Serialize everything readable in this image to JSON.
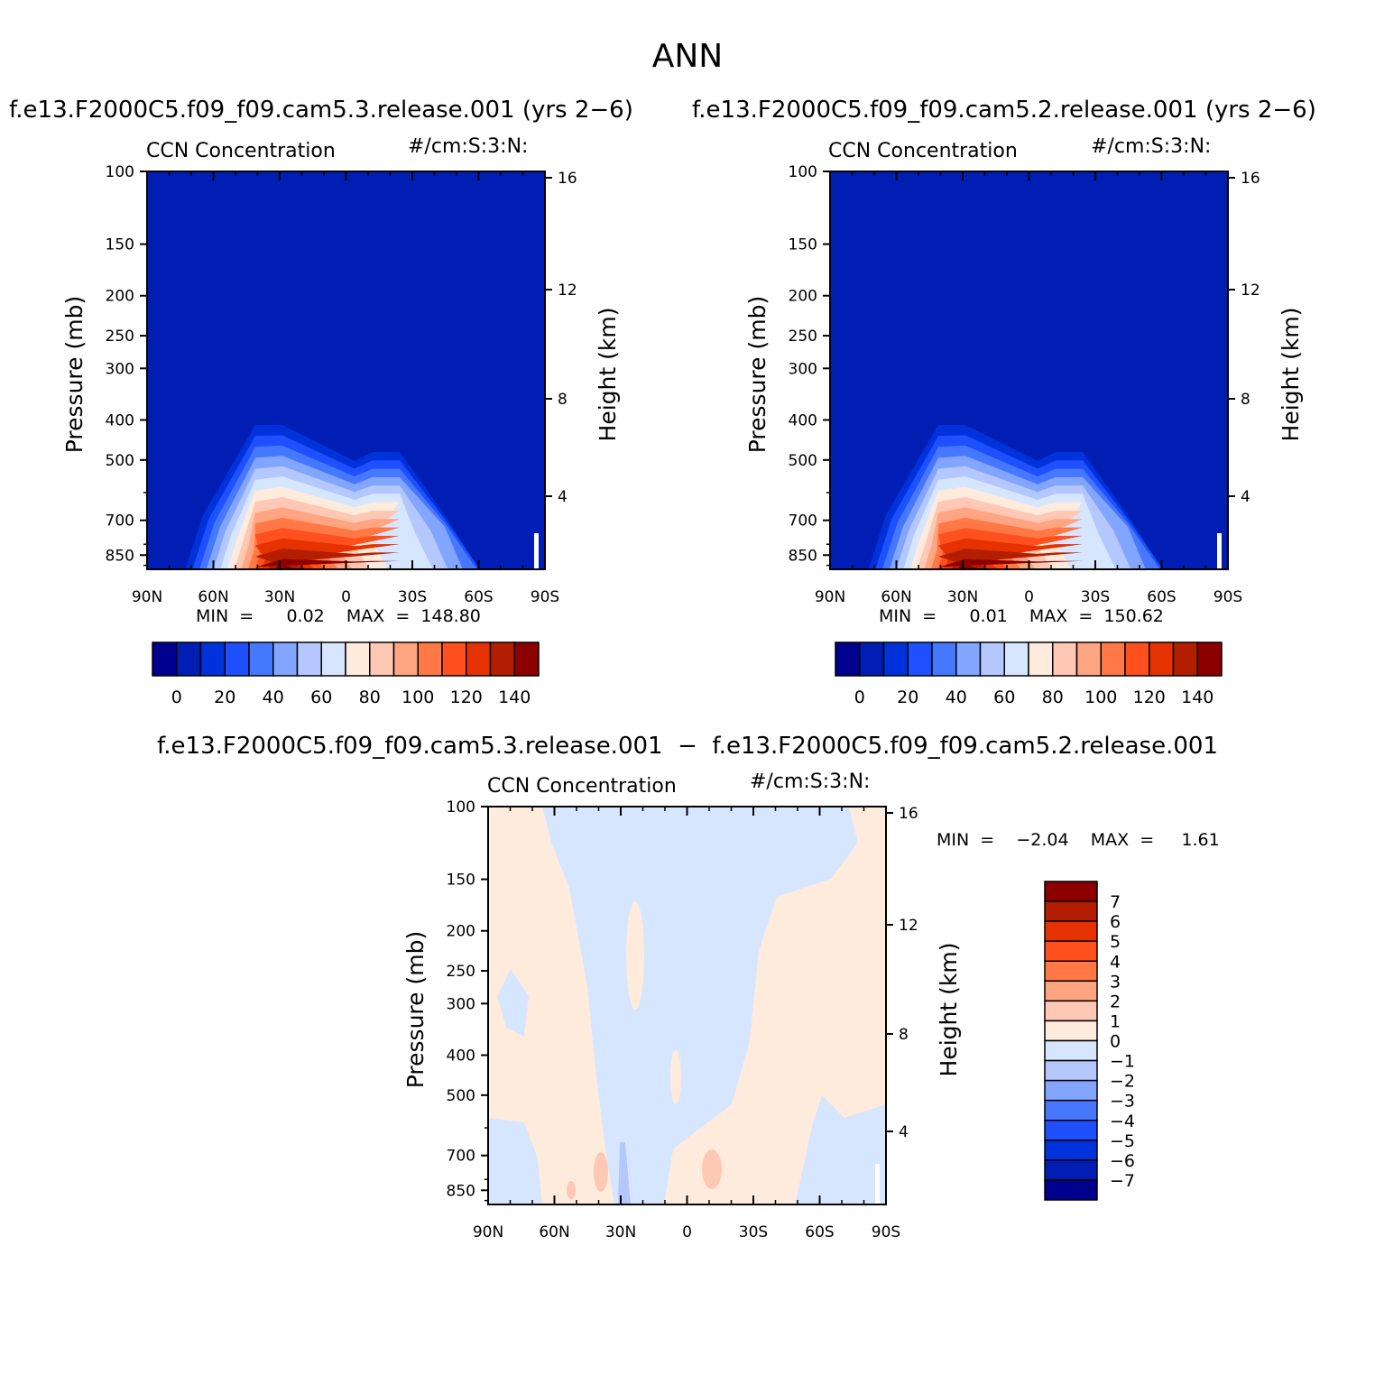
{
  "page_title": "ANN",
  "panels": [
    {
      "title": "f.e13.F2000C5.f09_f09.cam5.3.release.001  (yrs  2−6)",
      "left_label": "CCN  Concentration",
      "right_label": "#/cm:S:3:N:",
      "min_max": "MIN  =      0.02    MAX  =  148.80"
    },
    {
      "title": "f.e13.F2000C5.f09_f09.cam5.2.release.001  (yrs  2−6)",
      "left_label": "CCN  Concentration",
      "right_label": "#/cm:S:3:N:",
      "min_max": "MIN  =      0.01    MAX  =  150.62"
    },
    {
      "title": "f.e13.F2000C5.f09_f09.cam5.3.release.001  −  f.e13.F2000C5.f09_f09.cam5.2.release.001",
      "left_label": "CCN  Concentration",
      "right_label": "#/cm:S:3:N:",
      "min_max": "MIN  =    −2.04    MAX  =     1.61"
    }
  ],
  "chart_data": [
    {
      "type": "heatmap",
      "panel": 1,
      "title": "f.e13.F2000C5.f09_f09.cam5.3.release.001  (yrs  2−6)",
      "xlabel": "",
      "ylabel": "Pressure  (mb)",
      "y2label": "Height  (km)",
      "x_ticks": [
        "90N",
        "60N",
        "30N",
        "0",
        "30S",
        "60S",
        "90S"
      ],
      "y_ticks": [
        100,
        150,
        200,
        250,
        300,
        400,
        500,
        700,
        850
      ],
      "y2_ticks": [
        16,
        12,
        8,
        4
      ],
      "y_scale": "log",
      "ylim": [
        1000,
        100
      ],
      "xlim": [
        90,
        -90
      ],
      "min": 0.02,
      "max": 148.8,
      "colorbar": {
        "orientation": "horizontal",
        "levels": [
          0,
          20,
          40,
          60,
          80,
          100,
          120,
          140
        ],
        "colors": [
          "#00008f",
          "#001eb4",
          "#0032dc",
          "#1e50ff",
          "#4678ff",
          "#82a5ff",
          "#b4c8ff",
          "#d7e6ff",
          "#ffebdc",
          "#ffc8b4",
          "#ffa582",
          "#ff7846",
          "#ff501e",
          "#e63200",
          "#b41e00",
          "#8c0000"
        ]
      }
    },
    {
      "type": "heatmap",
      "panel": 2,
      "title": "f.e13.F2000C5.f09_f09.cam5.2.release.001  (yrs  2−6)",
      "xlabel": "",
      "ylabel": "Pressure  (mb)",
      "y2label": "Height  (km)",
      "x_ticks": [
        "90N",
        "60N",
        "30N",
        "0",
        "30S",
        "60S",
        "90S"
      ],
      "y_ticks": [
        100,
        150,
        200,
        250,
        300,
        400,
        500,
        700,
        850
      ],
      "y2_ticks": [
        16,
        12,
        8,
        4
      ],
      "y_scale": "log",
      "ylim": [
        1000,
        100
      ],
      "xlim": [
        90,
        -90
      ],
      "min": 0.01,
      "max": 150.62,
      "colorbar": {
        "orientation": "horizontal",
        "levels": [
          0,
          20,
          40,
          60,
          80,
          100,
          120,
          140
        ],
        "colors": [
          "#00008f",
          "#001eb4",
          "#0032dc",
          "#1e50ff",
          "#4678ff",
          "#82a5ff",
          "#b4c8ff",
          "#d7e6ff",
          "#ffebdc",
          "#ffc8b4",
          "#ffa582",
          "#ff7846",
          "#ff501e",
          "#e63200",
          "#b41e00",
          "#8c0000"
        ]
      }
    },
    {
      "type": "heatmap",
      "panel": 3,
      "title": "f.e13.F2000C5.f09_f09.cam5.3.release.001  −  f.e13.F2000C5.f09_f09.cam5.2.release.001",
      "xlabel": "",
      "ylabel": "Pressure  (mb)",
      "y2label": "Height  (km)",
      "x_ticks": [
        "90N",
        "60N",
        "30N",
        "0",
        "30S",
        "60S",
        "90S"
      ],
      "y_ticks": [
        100,
        150,
        200,
        250,
        300,
        400,
        500,
        700,
        850
      ],
      "y2_ticks": [
        16,
        12,
        8,
        4
      ],
      "y_scale": "log",
      "ylim": [
        1000,
        100
      ],
      "xlim": [
        90,
        -90
      ],
      "min": -2.04,
      "max": 1.61,
      "colorbar": {
        "orientation": "vertical",
        "levels": [
          "7",
          "6",
          "5",
          "4",
          "3",
          "2",
          "1",
          "0",
          "−1",
          "−2",
          "−3",
          "−4",
          "−5",
          "−6",
          "−7"
        ],
        "colors": [
          "#8c0000",
          "#b41e00",
          "#e63200",
          "#ff501e",
          "#ff7846",
          "#ffa582",
          "#ffc8b4",
          "#ffebdc",
          "#d7e6ff",
          "#b4c8ff",
          "#82a5ff",
          "#4678ff",
          "#1e50ff",
          "#0032dc",
          "#001eb4",
          "#00008f"
        ]
      }
    }
  ]
}
